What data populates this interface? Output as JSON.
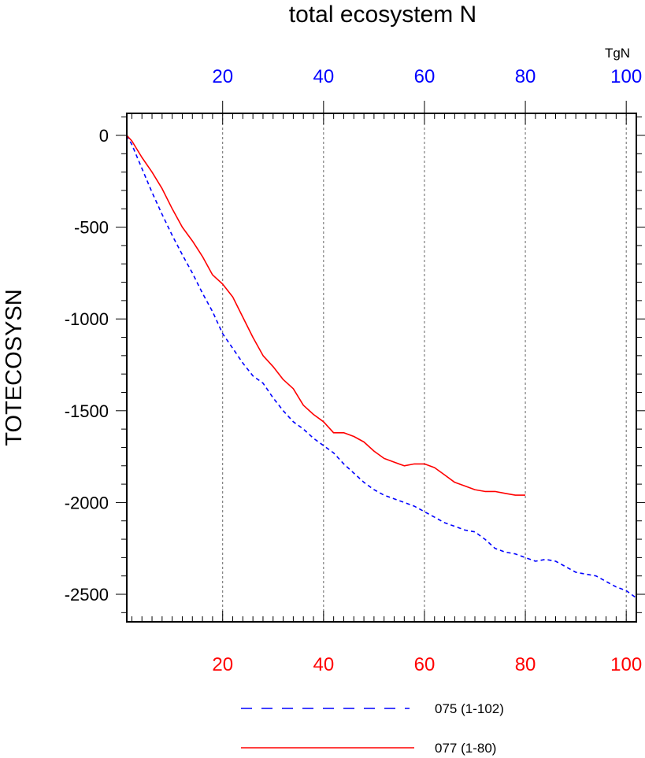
{
  "chart_data": {
    "type": "line",
    "title": "total ecosystem N",
    "units": "TgN",
    "ylabel": "TOTECOSYSN",
    "xlabel": "",
    "xlim": [
      1,
      102
    ],
    "ylim": [
      -2650,
      120
    ],
    "grid": "vertical dashed lines at labeled x ticks",
    "legend_position": "bottom",
    "bottom_axis": {
      "color": "#ff0000",
      "ticks": [
        20,
        40,
        60,
        80,
        100
      ]
    },
    "top_axis": {
      "color": "#0000ff",
      "ticks": [
        20,
        40,
        60,
        80,
        100
      ]
    },
    "y_ticks": [
      0,
      -500,
      -1000,
      -1500,
      -2000,
      -2500
    ],
    "series": [
      {
        "name": "075 (1-102)",
        "color": "#0000ff",
        "dash": "dashed",
        "x": [
          1,
          2,
          4,
          6,
          8,
          10,
          12,
          14,
          16,
          18,
          20,
          22,
          24,
          26,
          28,
          30,
          32,
          34,
          36,
          38,
          40,
          42,
          44,
          46,
          48,
          50,
          52,
          54,
          56,
          58,
          60,
          62,
          64,
          66,
          68,
          70,
          72,
          74,
          76,
          78,
          80,
          82,
          84,
          86,
          88,
          90,
          92,
          94,
          96,
          98,
          100,
          102
        ],
        "y": [
          0,
          -50,
          -180,
          -310,
          -430,
          -545,
          -650,
          -750,
          -860,
          -960,
          -1080,
          -1160,
          -1240,
          -1310,
          -1350,
          -1430,
          -1500,
          -1560,
          -1600,
          -1650,
          -1690,
          -1730,
          -1790,
          -1840,
          -1890,
          -1930,
          -1960,
          -1980,
          -2000,
          -2020,
          -2050,
          -2080,
          -2110,
          -2130,
          -2150,
          -2160,
          -2200,
          -2250,
          -2270,
          -2280,
          -2300,
          -2320,
          -2310,
          -2320,
          -2350,
          -2380,
          -2390,
          -2400,
          -2430,
          -2460,
          -2480,
          -2520
        ]
      },
      {
        "name": "077 (1-80)",
        "color": "#ff0000",
        "dash": "solid",
        "x": [
          1,
          2,
          4,
          6,
          8,
          10,
          12,
          14,
          16,
          18,
          20,
          22,
          24,
          26,
          28,
          30,
          32,
          34,
          36,
          38,
          40,
          42,
          44,
          46,
          48,
          50,
          52,
          54,
          56,
          58,
          60,
          62,
          64,
          66,
          68,
          70,
          72,
          74,
          76,
          78,
          80
        ],
        "y": [
          0,
          -30,
          -120,
          -200,
          -290,
          -400,
          -500,
          -575,
          -660,
          -760,
          -810,
          -880,
          -990,
          -1100,
          -1200,
          -1260,
          -1330,
          -1380,
          -1470,
          -1520,
          -1560,
          -1620,
          -1620,
          -1640,
          -1670,
          -1720,
          -1760,
          -1780,
          -1800,
          -1790,
          -1790,
          -1810,
          -1850,
          -1890,
          -1910,
          -1930,
          -1940,
          -1940,
          -1950,
          -1960,
          -1960
        ]
      }
    ]
  }
}
